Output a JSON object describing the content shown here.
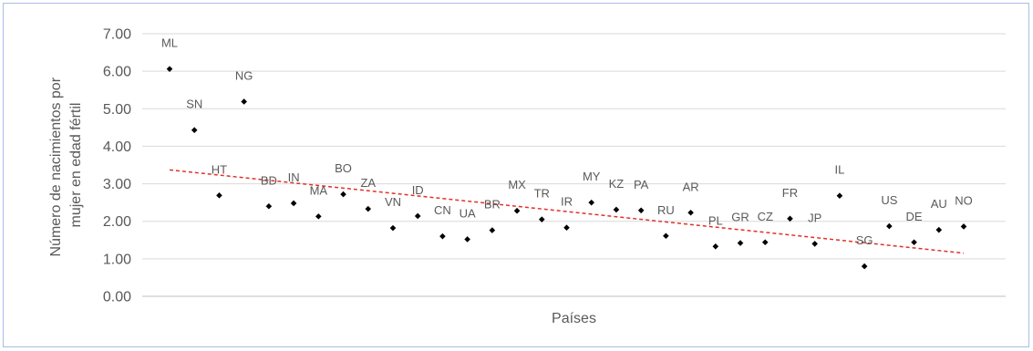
{
  "chart_data": {
    "type": "scatter",
    "title": "",
    "xlabel": "Países",
    "ylabel": "Número de nacimientos por mujer en edad fértil",
    "ylabel_lines": [
      "Número de nacimientos por",
      "mujer en edad fértil"
    ],
    "ylim": [
      0,
      7
    ],
    "yticks": [
      "0.00",
      "1.00",
      "2.00",
      "3.00",
      "4.00",
      "5.00",
      "6.00",
      "7.00"
    ],
    "grid": true,
    "legend": "none",
    "marker_color": "#000000",
    "trendline": {
      "type": "linear",
      "color": "#e0312a",
      "style": "dashed",
      "start_y": 3.37,
      "end_y": 1.15
    },
    "points": [
      {
        "label": "ML",
        "y": 6.06
      },
      {
        "label": "SN",
        "y": 4.43
      },
      {
        "label": "HT",
        "y": 2.69
      },
      {
        "label": "NG",
        "y": 5.19
      },
      {
        "label": "BD",
        "y": 2.4
      },
      {
        "label": "IN",
        "y": 2.48
      },
      {
        "label": "MA",
        "y": 2.13
      },
      {
        "label": "BO",
        "y": 2.72
      },
      {
        "label": "ZA",
        "y": 2.33
      },
      {
        "label": "VN",
        "y": 1.82
      },
      {
        "label": "ID",
        "y": 2.14
      },
      {
        "label": "CN",
        "y": 1.6
      },
      {
        "label": "UA",
        "y": 1.52
      },
      {
        "label": "BR",
        "y": 1.76
      },
      {
        "label": "MX",
        "y": 2.28
      },
      {
        "label": "TR",
        "y": 2.05
      },
      {
        "label": "IR",
        "y": 1.83
      },
      {
        "label": "MY",
        "y": 2.5
      },
      {
        "label": "KZ",
        "y": 2.31
      },
      {
        "label": "PA",
        "y": 2.29
      },
      {
        "label": "RU",
        "y": 1.61
      },
      {
        "label": "AR",
        "y": 2.23
      },
      {
        "label": "PL",
        "y": 1.33
      },
      {
        "label": "GR",
        "y": 1.42
      },
      {
        "label": "CZ",
        "y": 1.44
      },
      {
        "label": "FR",
        "y": 2.07
      },
      {
        "label": "JP",
        "y": 1.4
      },
      {
        "label": "IL",
        "y": 2.68
      },
      {
        "label": "SG",
        "y": 0.8
      },
      {
        "label": "US",
        "y": 1.87
      },
      {
        "label": "DE",
        "y": 1.44
      },
      {
        "label": "AU",
        "y": 1.77
      },
      {
        "label": "NO",
        "y": 1.86
      }
    ]
  }
}
